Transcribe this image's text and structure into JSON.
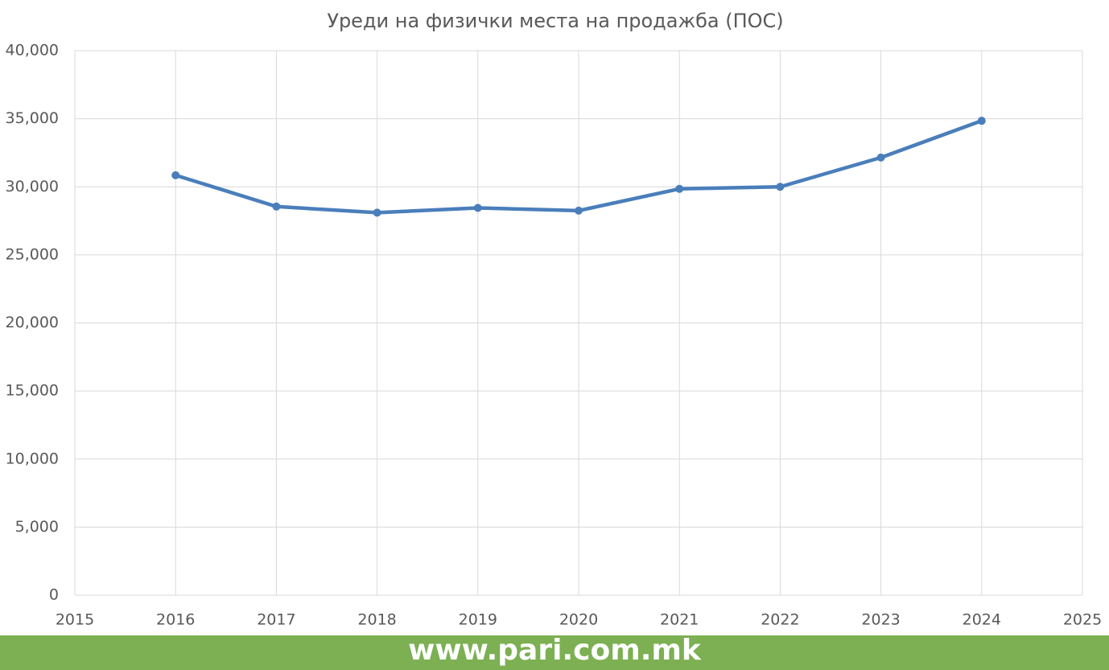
{
  "chart_data": {
    "type": "line",
    "title": "Уреди на физички места на продажба (ПОС)",
    "x": [
      2016,
      2017,
      2018,
      2019,
      2020,
      2021,
      2022,
      2023,
      2024
    ],
    "series": [
      {
        "name": "ПОС",
        "color": "#4a7ebb",
        "values": [
          30850,
          28550,
          28100,
          28450,
          28250,
          29850,
          30000,
          32150,
          34850
        ]
      }
    ],
    "xlim": [
      2015,
      2025
    ],
    "xticks": [
      2015,
      2016,
      2017,
      2018,
      2019,
      2020,
      2021,
      2022,
      2023,
      2024,
      2025
    ],
    "ylim": [
      0,
      40000
    ],
    "yticks": [
      0,
      {
        "value": 5000,
        "label": "5,000"
      },
      {
        "value": 10000,
        "label": "10,000"
      },
      {
        "value": 15000,
        "label": "15,000"
      },
      {
        "value": 20000,
        "label": "20,000"
      },
      {
        "value": 25000,
        "label": "25,000"
      },
      {
        "value": 30000,
        "label": "30,000"
      },
      {
        "value": 35000,
        "label": "35,000"
      },
      {
        "value": 40000,
        "label": "40,000"
      }
    ],
    "grid": true
  },
  "footer": {
    "text": "www.pari.com.mk"
  }
}
